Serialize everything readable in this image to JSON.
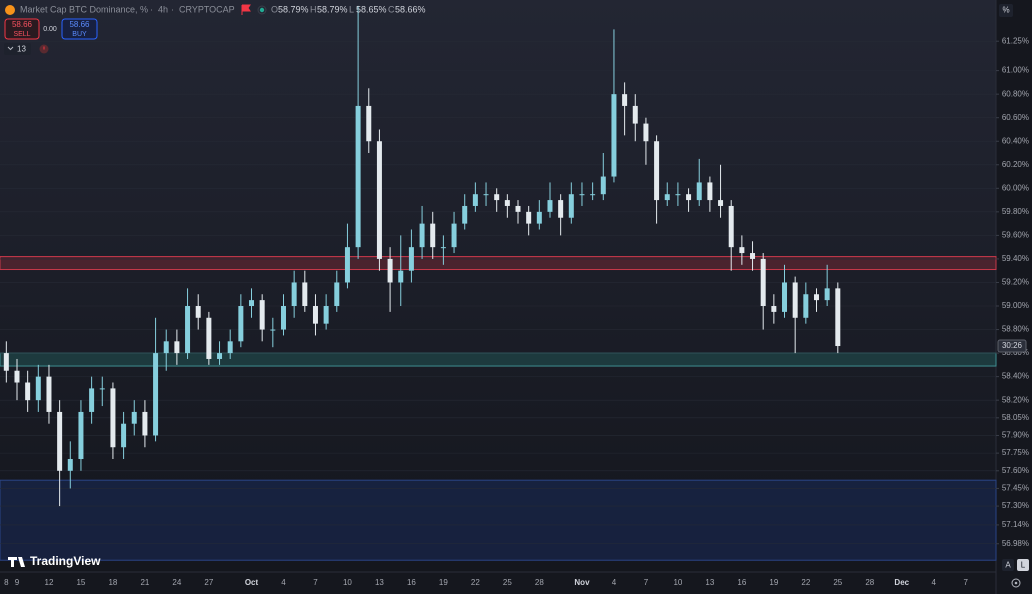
{
  "header": {
    "title": "Market Cap BTC Dominance, %",
    "separator": "·",
    "interval": "4h",
    "source": "CRYPTOCAP",
    "ohlc": [
      {
        "label": "O",
        "value": "58.79%"
      },
      {
        "label": "H",
        "value": "58.79%"
      },
      {
        "label": "L",
        "value": "58.65%"
      },
      {
        "label": "C",
        "value": "58.66%"
      }
    ]
  },
  "trade": {
    "sell_price": "58.66",
    "sell_label": "SELL",
    "spread": "0.00",
    "buy_price": "58.66",
    "buy_label": "BUY"
  },
  "indicators": {
    "count": "13"
  },
  "axis_unit": "%",
  "countdown": "30:26",
  "brand": "TradingView",
  "scale_buttons": [
    "A",
    "L"
  ],
  "chart_data": {
    "type": "candlestick",
    "categories": [
      "8",
      "9",
      null,
      null,
      "12",
      null,
      null,
      "15",
      null,
      null,
      "18",
      null,
      null,
      "21",
      null,
      null,
      "24",
      null,
      null,
      "27",
      null,
      null,
      null,
      "Oct",
      null,
      null,
      "4",
      null,
      null,
      "7",
      null,
      null,
      "10",
      null,
      null,
      "13",
      null,
      null,
      "16",
      null,
      null,
      "19",
      null,
      null,
      "22",
      null,
      null,
      "25",
      null,
      null,
      "28",
      null,
      null,
      null,
      "Nov",
      null,
      null,
      "4",
      null,
      null,
      "7",
      null,
      null,
      "10",
      null,
      null,
      "13",
      null,
      null,
      "16",
      null,
      null,
      "19",
      null,
      null,
      "22",
      null,
      null,
      "25",
      null,
      null,
      "28",
      null,
      null,
      "Dec",
      null,
      null,
      "4",
      null,
      null,
      "7"
    ],
    "open": [
      58.6,
      58.45,
      58.35,
      58.2,
      58.4,
      58.1,
      57.6,
      57.7,
      58.1,
      58.3,
      58.3,
      57.8,
      58.0,
      58.1,
      57.9,
      58.6,
      58.7,
      58.6,
      59.0,
      58.9,
      58.55,
      58.6,
      58.7,
      59.0,
      59.05,
      58.8,
      58.8,
      59.0,
      59.2,
      59.0,
      58.85,
      59.0,
      59.2,
      59.5,
      60.7,
      60.4,
      59.4,
      59.2,
      59.3,
      59.5,
      59.7,
      59.5,
      59.5,
      59.7,
      59.85,
      59.95,
      59.95,
      59.9,
      59.85,
      59.8,
      59.7,
      59.8,
      59.9,
      59.75,
      59.95,
      59.95,
      59.95,
      60.1,
      60.8,
      60.7,
      60.55,
      60.4,
      59.9,
      59.95,
      59.95,
      59.9,
      60.05,
      59.9,
      59.85,
      59.5,
      59.45,
      59.4,
      59.0,
      58.95,
      59.2,
      58.9,
      59.1,
      59.05,
      59.15,
      null,
      null,
      null,
      null,
      null,
      null,
      null,
      null,
      null,
      null,
      null,
      null
    ],
    "high": [
      58.7,
      58.55,
      58.45,
      58.5,
      58.5,
      58.2,
      57.85,
      58.2,
      58.4,
      58.4,
      58.35,
      58.1,
      58.2,
      58.2,
      58.9,
      58.8,
      58.8,
      59.15,
      59.1,
      58.95,
      58.7,
      58.8,
      59.1,
      59.15,
      59.1,
      58.9,
      59.1,
      59.3,
      59.3,
      59.1,
      59.1,
      59.3,
      59.7,
      61.55,
      60.85,
      60.5,
      59.5,
      59.6,
      59.65,
      59.85,
      59.8,
      59.6,
      59.8,
      59.95,
      60.05,
      60.05,
      60.0,
      59.95,
      59.9,
      59.85,
      59.9,
      60.05,
      59.95,
      60.05,
      60.05,
      60.05,
      60.3,
      61.35,
      60.9,
      60.8,
      60.6,
      60.45,
      60.05,
      60.05,
      60.0,
      60.25,
      60.1,
      60.2,
      59.9,
      59.6,
      59.55,
      59.45,
      59.1,
      59.35,
      59.25,
      59.2,
      59.15,
      59.35,
      59.2,
      null,
      null,
      null,
      null,
      null,
      null,
      null,
      null,
      null,
      null,
      null,
      null
    ],
    "low": [
      58.35,
      58.2,
      58.1,
      58.1,
      58.0,
      57.3,
      57.45,
      57.6,
      58.0,
      58.15,
      57.7,
      57.7,
      57.9,
      57.8,
      57.85,
      58.45,
      58.5,
      58.55,
      58.8,
      58.5,
      58.5,
      58.55,
      58.65,
      58.9,
      58.7,
      58.65,
      58.75,
      58.9,
      58.95,
      58.75,
      58.8,
      58.95,
      59.15,
      59.4,
      60.3,
      59.3,
      58.95,
      59.0,
      59.2,
      59.4,
      59.4,
      59.35,
      59.45,
      59.65,
      59.8,
      59.85,
      59.8,
      59.75,
      59.7,
      59.6,
      59.65,
      59.75,
      59.6,
      59.7,
      59.85,
      59.9,
      59.9,
      60.05,
      60.45,
      60.4,
      60.2,
      59.7,
      59.85,
      59.85,
      59.8,
      59.85,
      59.8,
      59.75,
      59.3,
      59.35,
      59.3,
      58.8,
      58.85,
      58.9,
      58.6,
      58.85,
      58.95,
      59.0,
      58.6,
      null,
      null,
      null,
      null,
      null,
      null,
      null,
      null,
      null,
      null,
      null,
      null
    ],
    "close": [
      58.45,
      58.35,
      58.2,
      58.4,
      58.1,
      57.6,
      57.7,
      58.1,
      58.3,
      58.3,
      57.8,
      58.0,
      58.1,
      57.9,
      58.6,
      58.7,
      58.6,
      59.0,
      58.9,
      58.55,
      58.6,
      58.7,
      59.0,
      59.05,
      58.8,
      58.8,
      59.0,
      59.2,
      59.0,
      58.85,
      59.0,
      59.2,
      59.5,
      60.7,
      60.4,
      59.4,
      59.2,
      59.3,
      59.5,
      59.7,
      59.5,
      59.5,
      59.7,
      59.85,
      59.95,
      59.95,
      59.9,
      59.85,
      59.8,
      59.7,
      59.8,
      59.9,
      59.75,
      59.95,
      59.95,
      59.95,
      60.1,
      60.8,
      60.7,
      60.55,
      60.4,
      59.9,
      59.95,
      59.95,
      59.9,
      60.05,
      59.9,
      59.85,
      59.5,
      59.45,
      59.4,
      59.0,
      58.95,
      59.2,
      58.9,
      59.1,
      59.05,
      59.15,
      58.66,
      null,
      null,
      null,
      null,
      null,
      null,
      null,
      null,
      null,
      null,
      null,
      null
    ],
    "up_color": "#86cfdd",
    "down_color": "#e4eaee",
    "ylim": [
      56.74,
      61.6
    ],
    "yticks": [
      {
        "value": 61.25,
        "label": "61.25%"
      },
      {
        "value": 61.0,
        "label": "61.00%"
      },
      {
        "value": 60.8,
        "label": "60.80%"
      },
      {
        "value": 60.6,
        "label": "60.60%"
      },
      {
        "value": 60.4,
        "label": "60.40%"
      },
      {
        "value": 60.2,
        "label": "60.20%"
      },
      {
        "value": 60.0,
        "label": "60.00%"
      },
      {
        "value": 59.8,
        "label": "59.80%"
      },
      {
        "value": 59.6,
        "label": "59.60%"
      },
      {
        "value": 59.4,
        "label": "59.40%"
      },
      {
        "value": 59.2,
        "label": "59.20%"
      },
      {
        "value": 59.0,
        "label": "59.00%"
      },
      {
        "value": 58.8,
        "label": "58.80%"
      },
      {
        "value": 58.6,
        "label": "58.60%"
      },
      {
        "value": 58.4,
        "label": "58.40%"
      },
      {
        "value": 58.2,
        "label": "58.20%"
      },
      {
        "value": 58.05,
        "label": "58.05%"
      },
      {
        "value": 57.9,
        "label": "57.90%"
      },
      {
        "value": 57.75,
        "label": "57.75%"
      },
      {
        "value": 57.6,
        "label": "57.60%"
      },
      {
        "value": 57.45,
        "label": "57.45%"
      },
      {
        "value": 57.3,
        "label": "57.30%"
      },
      {
        "value": 57.14,
        "label": "57.14%"
      },
      {
        "value": 56.98,
        "label": "56.98%"
      }
    ],
    "grid": true,
    "zones": [
      {
        "from": 59.31,
        "to": 59.42,
        "fill": "#5a2530",
        "stroke": "#c7394a"
      },
      {
        "from": 58.49,
        "to": 58.6,
        "fill": "#1f4447",
        "stroke": "#3f8f92"
      },
      {
        "from": 56.84,
        "to": 57.52,
        "fill": "#18264a",
        "stroke": "#2a4486"
      }
    ],
    "last_price": 58.66
  }
}
